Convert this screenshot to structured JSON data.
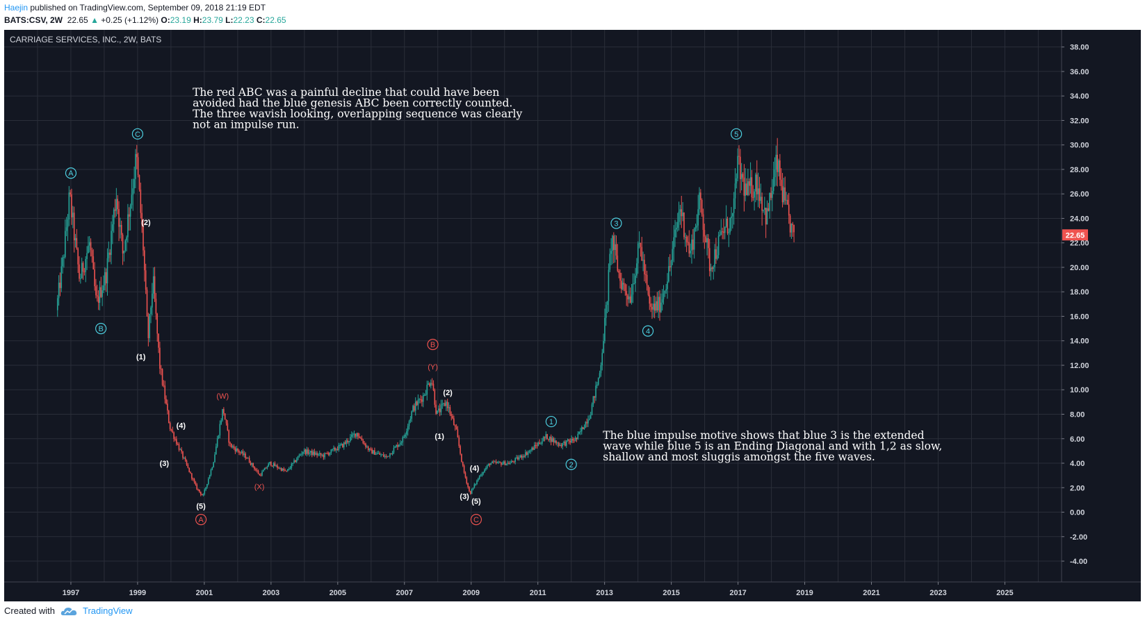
{
  "header": {
    "author": "Haejin",
    "published_text": "published on TradingView.com, September 09, 2018 21:19 EDT"
  },
  "quote": {
    "symbol": "BATS:CSV, 2W",
    "last": "22.65",
    "change": "+0.25 (+1.12%)",
    "o_label": "O:",
    "o": "23.19",
    "h_label": "H:",
    "h": "23.79",
    "l_label": "L:",
    "l": "22.23",
    "c_label": "C:",
    "c": "22.65"
  },
  "footer": {
    "created_with": "Created with",
    "brand": "TradingView"
  },
  "colors": {
    "background": "#131722",
    "up": "#26a69a",
    "down": "#ef5350",
    "blue_label": "#4dd0e1",
    "red_label": "#ef5350",
    "grid": "#2a2e39",
    "text": "#ffffff"
  },
  "chart_data": {
    "type": "candlestick",
    "title": "CARRIAGE SERVICES, INC., 2W, BATS",
    "xlim": [
      1995.0,
      2026.7
    ],
    "ylim": [
      -5.7,
      39.4
    ],
    "x_ticks": [
      "1997",
      "1999",
      "2001",
      "2003",
      "2005",
      "2007",
      "2009",
      "2011",
      "2013",
      "2015",
      "2017",
      "2019",
      "2021",
      "2023",
      "2025"
    ],
    "y_ticks": [
      "38.00",
      "36.00",
      "34.00",
      "32.00",
      "30.00",
      "28.00",
      "26.00",
      "24.00",
      "22.00",
      "20.00",
      "18.00",
      "16.00",
      "14.00",
      "12.00",
      "10.00",
      "8.00",
      "6.00",
      "4.00",
      "2.00",
      "0.00",
      "-2.00",
      "-4.00"
    ],
    "last_price_label": "22.65",
    "price_path": [
      [
        1996.6,
        16.5
      ],
      [
        1996.8,
        20.5
      ],
      [
        1997.0,
        25.8
      ],
      [
        1997.3,
        19.0
      ],
      [
        1997.6,
        22.0
      ],
      [
        1997.8,
        17.0
      ],
      [
        1998.1,
        19.5
      ],
      [
        1998.4,
        26.0
      ],
      [
        1998.6,
        21.0
      ],
      [
        1998.8,
        25.0
      ],
      [
        1999.0,
        29.0
      ],
      [
        1999.2,
        22.0
      ],
      [
        1999.35,
        14.0
      ],
      [
        1999.5,
        19.0
      ],
      [
        1999.7,
        12.0
      ],
      [
        2000.0,
        7.0
      ],
      [
        2000.4,
        4.5
      ],
      [
        2000.8,
        2.0
      ],
      [
        2001.0,
        1.3
      ],
      [
        2001.3,
        4.0
      ],
      [
        2001.6,
        8.5
      ],
      [
        2001.8,
        5.5
      ],
      [
        2002.3,
        4.5
      ],
      [
        2002.7,
        3.0
      ],
      [
        2003.0,
        4.0
      ],
      [
        2003.5,
        3.3
      ],
      [
        2004.0,
        5.0
      ],
      [
        2004.6,
        4.6
      ],
      [
        2005.2,
        5.5
      ],
      [
        2005.6,
        6.5
      ],
      [
        2006.0,
        5.0
      ],
      [
        2006.5,
        4.5
      ],
      [
        2007.0,
        6.0
      ],
      [
        2007.3,
        8.5
      ],
      [
        2007.6,
        9.5
      ],
      [
        2007.85,
        11.0
      ],
      [
        2008.0,
        8.0
      ],
      [
        2008.3,
        9.0
      ],
      [
        2008.6,
        6.5
      ],
      [
        2008.8,
        3.5
      ],
      [
        2009.0,
        1.5
      ],
      [
        2009.3,
        3.0
      ],
      [
        2009.6,
        4.0
      ],
      [
        2010.2,
        4.0
      ],
      [
        2010.8,
        5.0
      ],
      [
        2011.3,
        6.2
      ],
      [
        2011.7,
        5.5
      ],
      [
        2012.2,
        6.0
      ],
      [
        2012.6,
        8.0
      ],
      [
        2012.9,
        11.5
      ],
      [
        2013.1,
        17.0
      ],
      [
        2013.25,
        22.5
      ],
      [
        2013.5,
        19.0
      ],
      [
        2013.8,
        17.5
      ],
      [
        2014.1,
        22.0
      ],
      [
        2014.4,
        16.5
      ],
      [
        2014.7,
        17.0
      ],
      [
        2015.0,
        20.0
      ],
      [
        2015.3,
        25.0
      ],
      [
        2015.6,
        21.0
      ],
      [
        2015.9,
        25.5
      ],
      [
        2016.2,
        20.0
      ],
      [
        2016.6,
        23.0
      ],
      [
        2016.9,
        24.0
      ],
      [
        2017.0,
        28.5
      ],
      [
        2017.3,
        26.0
      ],
      [
        2017.6,
        27.0
      ],
      [
        2017.9,
        24.0
      ],
      [
        2018.2,
        28.5
      ],
      [
        2018.45,
        25.0
      ],
      [
        2018.69,
        22.65
      ]
    ],
    "wave_labels": [
      {
        "text": "A",
        "x": 1997.0,
        "y": 27.7,
        "style": "circle-blue"
      },
      {
        "text": "B",
        "x": 1997.9,
        "y": 15.0,
        "style": "circle-blue"
      },
      {
        "text": "C",
        "x": 1999.0,
        "y": 30.9,
        "style": "circle-blue"
      },
      {
        "text": "(2)",
        "x": 1999.25,
        "y": 23.7,
        "style": "white"
      },
      {
        "text": "(1)",
        "x": 1999.1,
        "y": 12.7,
        "style": "white"
      },
      {
        "text": "(4)",
        "x": 2000.3,
        "y": 7.1,
        "style": "white"
      },
      {
        "text": "(3)",
        "x": 1999.8,
        "y": 4.0,
        "style": "white"
      },
      {
        "text": "(5)",
        "x": 2000.9,
        "y": 0.5,
        "style": "white"
      },
      {
        "text": "A",
        "x": 2000.9,
        "y": -0.6,
        "style": "circle-red"
      },
      {
        "text": "(W)",
        "x": 2001.55,
        "y": 9.5,
        "style": "red"
      },
      {
        "text": "(X)",
        "x": 2002.65,
        "y": 2.1,
        "style": "red"
      },
      {
        "text": "B",
        "x": 2007.85,
        "y": 13.7,
        "style": "circle-red"
      },
      {
        "text": "(Y)",
        "x": 2007.85,
        "y": 11.9,
        "style": "red"
      },
      {
        "text": "(2)",
        "x": 2008.3,
        "y": 9.8,
        "style": "white"
      },
      {
        "text": "(1)",
        "x": 2008.05,
        "y": 6.2,
        "style": "white"
      },
      {
        "text": "(4)",
        "x": 2009.1,
        "y": 3.6,
        "style": "white"
      },
      {
        "text": "(3)",
        "x": 2008.8,
        "y": 1.3,
        "style": "white"
      },
      {
        "text": "(5)",
        "x": 2009.15,
        "y": 0.9,
        "style": "white"
      },
      {
        "text": "C",
        "x": 2009.15,
        "y": -0.6,
        "style": "circle-red"
      },
      {
        "text": "1",
        "x": 2011.4,
        "y": 7.4,
        "style": "circle-blue"
      },
      {
        "text": "2",
        "x": 2012.0,
        "y": 3.9,
        "style": "circle-blue"
      },
      {
        "text": "3",
        "x": 2013.35,
        "y": 23.6,
        "style": "circle-blue"
      },
      {
        "text": "4",
        "x": 2014.3,
        "y": 14.8,
        "style": "circle-blue"
      },
      {
        "text": "5",
        "x": 2016.95,
        "y": 30.9,
        "style": "circle-blue"
      }
    ],
    "annotations": [
      {
        "x": 2000.65,
        "y": 34.0,
        "lines": [
          "The red ABC was a painful decline that could have been",
          "avoided had the blue genesis ABC been correctly counted.",
          "The three wavish looking, overlapping sequence was clearly",
          "not an impulse run."
        ]
      },
      {
        "x": 2012.95,
        "y": 6.0,
        "lines": [
          "The blue impulse motive shows that blue 3 is the extended",
          "wave while blue 5 is an Ending Diagonal and with 1,2 as slow,",
          "shallow and most sluggis amongst the five waves."
        ]
      }
    ]
  }
}
